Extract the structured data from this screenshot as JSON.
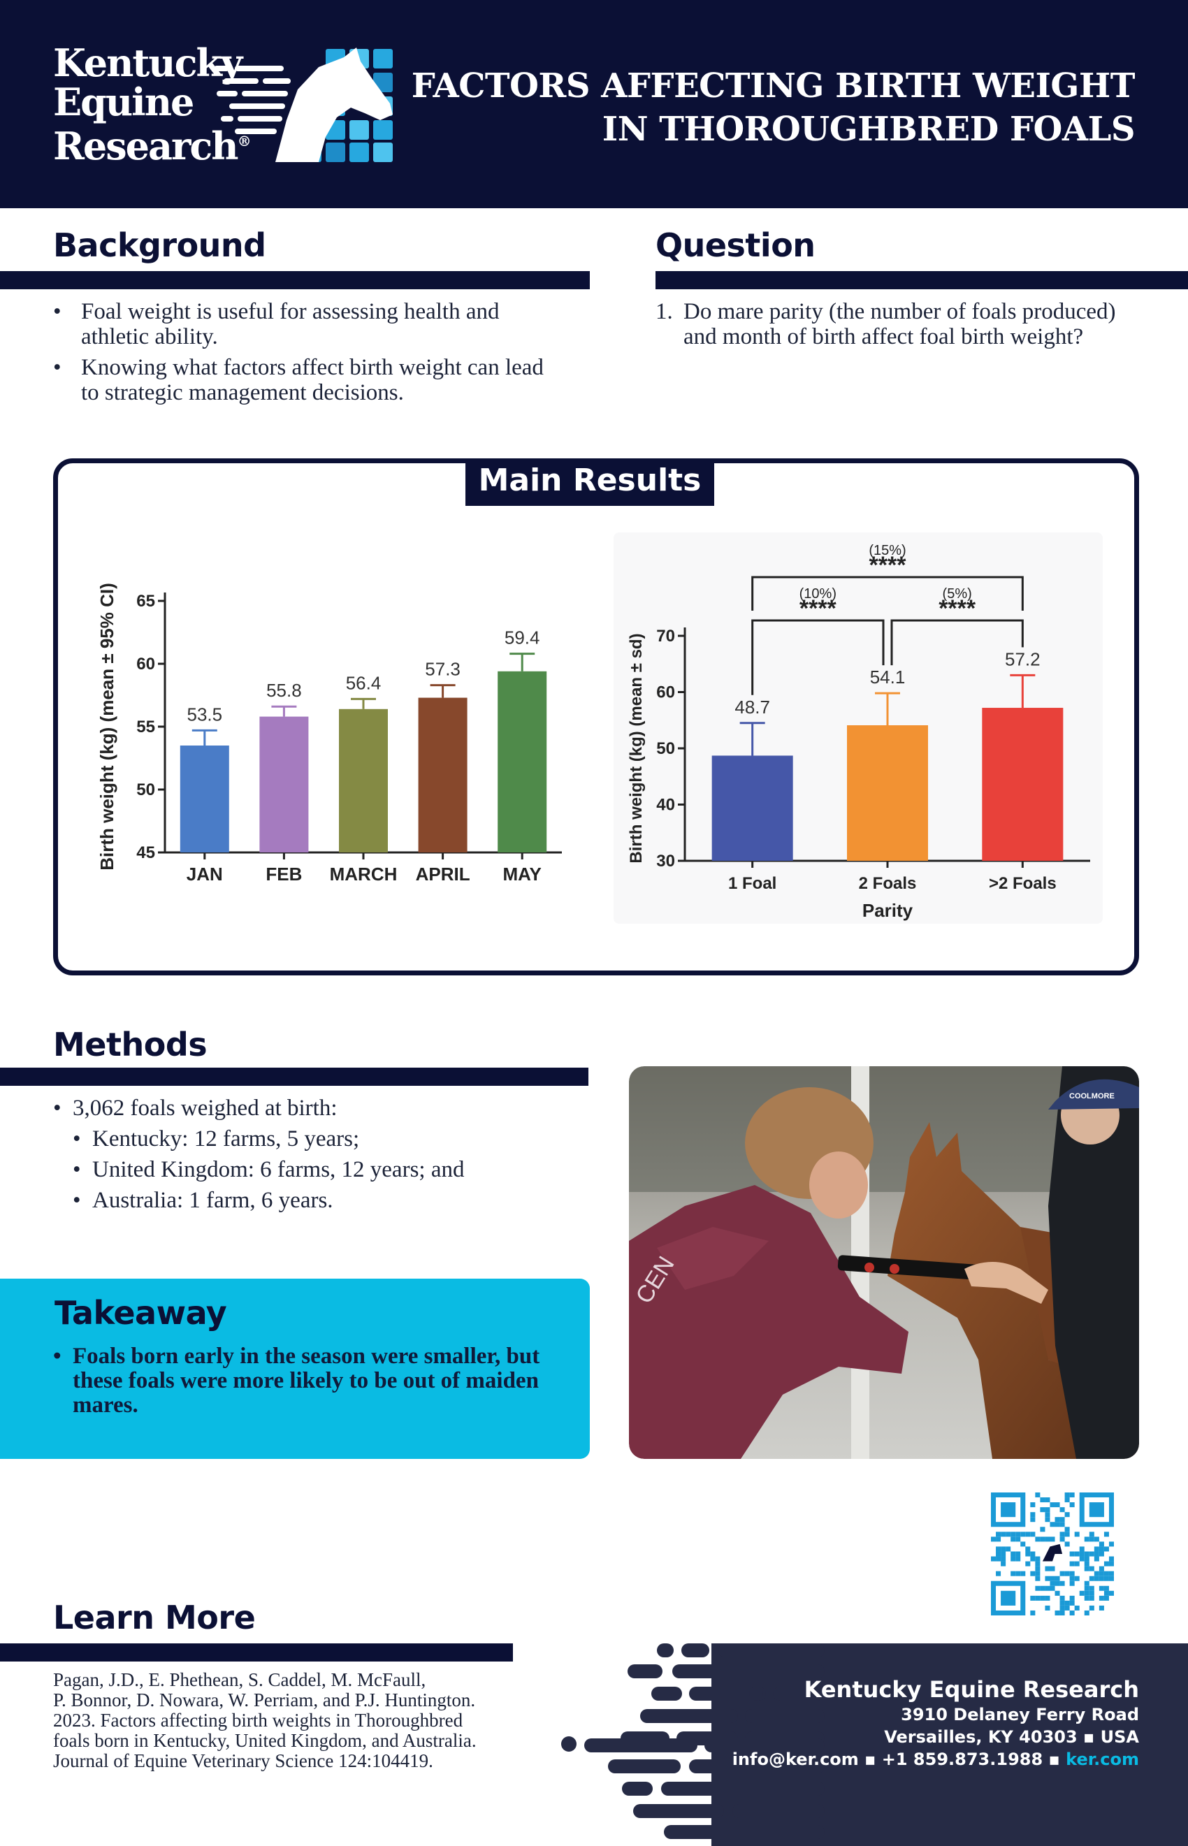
{
  "brand": {
    "line1": "Kentucky",
    "line2": "Equine",
    "line3": "Research",
    "reg": "®"
  },
  "title": {
    "line1": "FACTORS AFFECTING BIRTH WEIGHT",
    "line2": "IN THOROUGHBRED FOALS"
  },
  "background": {
    "heading": "Background",
    "bullets": [
      "Foal weight is useful for assessing health and athletic ability.",
      "Knowing what factors affect birth weight can lead to strategic management decisions."
    ]
  },
  "question": {
    "heading": "Question",
    "number": "1.",
    "text": "Do mare parity (the number of foals produced) and month of birth affect foal birth weight?"
  },
  "main_results": {
    "heading": "Main Results"
  },
  "chart_data": [
    {
      "type": "bar",
      "title": "",
      "xlabel": "",
      "ylabel": "Birth weight (kg) (mean ± 95% CI)",
      "categories": [
        "JAN",
        "FEB",
        "MARCH",
        "APRIL",
        "MAY"
      ],
      "values": [
        53.5,
        55.8,
        56.4,
        57.3,
        59.4
      ],
      "value_labels": [
        "53.5",
        "55.8",
        "56.4",
        "57.3",
        "59.4"
      ],
      "error_upper": [
        54.7,
        56.6,
        57.2,
        58.3,
        60.8
      ],
      "colors": [
        "#4a7cc7",
        "#a57bbf",
        "#848a44",
        "#87482c",
        "#4f8a4a"
      ],
      "ylim": [
        45,
        65
      ],
      "yticks": [
        45,
        50,
        55,
        60,
        65
      ],
      "grid": false
    },
    {
      "type": "bar",
      "title": "",
      "xlabel": "Parity",
      "ylabel": "Birth weight (kg) (mean ± sd)",
      "categories": [
        "1 Foal",
        "2 Foals",
        ">2 Foals"
      ],
      "values": [
        48.7,
        54.1,
        57.2
      ],
      "value_labels": [
        "48.7",
        "54.1",
        "57.2"
      ],
      "error_upper": [
        54.5,
        59.8,
        63.0
      ],
      "colors": [
        "#4557a8",
        "#f29233",
        "#e8413a"
      ],
      "ylim": [
        30,
        70
      ],
      "yticks": [
        30,
        40,
        50,
        60,
        70
      ],
      "grid": false,
      "comparisons": [
        {
          "from": 0,
          "to": 1,
          "pct": "(10%)",
          "sig": "****"
        },
        {
          "from": 1,
          "to": 2,
          "pct": "(5%)",
          "sig": "****"
        },
        {
          "from": 0,
          "to": 2,
          "pct": "(15%)",
          "sig": "****"
        }
      ]
    }
  ],
  "methods": {
    "heading": "Methods",
    "intro": "3,062 foals weighed at birth:",
    "items": [
      "Kentucky: 12 farms, 5 years;",
      "United Kingdom: 6 farms, 12 years; and",
      "Australia: 1 farm, 6 years."
    ]
  },
  "takeaway": {
    "heading": "Takeaway",
    "text": "Foals born early in the season were smaller, but these foals were more likely to be out of maiden mares."
  },
  "photo": {
    "jacket_text": "CEN",
    "cap_text": "COOLMORE"
  },
  "learn_more": {
    "heading": "Learn More",
    "citation_lines": [
      "Pagan, J.D., E. Phethean, S. Caddel, M. McFaull,",
      "P. Bonnor, D. Nowara, W. Perriam, and P.J. Huntington.",
      "2023. Factors affecting birth weights in Thoroughbred",
      "foals born in Kentucky, United Kingdom, and Australia.",
      "Journal of Equine Veterinary Science 124:104419."
    ]
  },
  "contact": {
    "name": "Kentucky Equine Research",
    "street": "3910 Delaney Ferry Road",
    "city": "Versailles, KY 40303 ▪ USA",
    "line": "info@ker.com ▪ +1 859.873.1988 ▪",
    "web": "ker.com"
  },
  "colors": {
    "navy": "#0b1035",
    "cyan": "#0abbe3",
    "footer": "#262b45"
  }
}
